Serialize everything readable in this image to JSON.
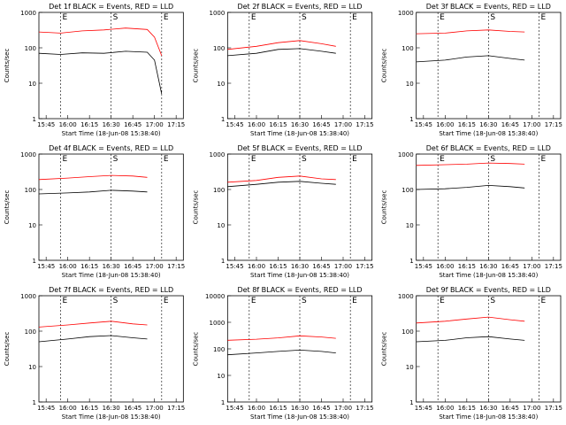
{
  "chart_data": {
    "type": "line",
    "layout": "3x3 grid",
    "yscale": "log",
    "x_ticks": [
      "15:45",
      "16:00",
      "16:15",
      "16:30",
      "16:45",
      "17:00",
      "17:15"
    ],
    "xlabel": "Start Time (18-Jun-08 15:38:40)",
    "ylabel": "Counts/sec",
    "markers": [
      "E",
      "S",
      "E"
    ],
    "colors": {
      "events": "#000000",
      "lld": "#ff0000",
      "axes": "#000000"
    },
    "panels": [
      {
        "title": "Det 1f BLACK = Events, RED = LLD",
        "ylim": [
          1,
          1000
        ],
        "y_ticks": [
          "1",
          "10",
          "100",
          "1000"
        ],
        "series": [
          {
            "key": "events",
            "values": [
              [
                0,
                70
              ],
              [
                6,
                65
              ],
              [
                12,
                72
              ],
              [
                18,
                70
              ],
              [
                24,
                80
              ],
              [
                30,
                75
              ],
              [
                32,
                45
              ],
              [
                34,
                5
              ]
            ]
          },
          {
            "key": "lld",
            "values": [
              [
                0,
                280
              ],
              [
                6,
                260
              ],
              [
                12,
                300
              ],
              [
                18,
                320
              ],
              [
                24,
                360
              ],
              [
                30,
                330
              ],
              [
                32,
                200
              ],
              [
                34,
                60
              ]
            ]
          }
        ]
      },
      {
        "title": "Det 2f BLACK = Events, RED = LLD",
        "ylim": [
          1,
          1000
        ],
        "y_ticks": [
          "1",
          "10",
          "100",
          "1000"
        ],
        "series": [
          {
            "key": "events",
            "values": [
              [
                0,
                60
              ],
              [
                8,
                70
              ],
              [
                14,
                90
              ],
              [
                20,
                95
              ],
              [
                26,
                80
              ],
              [
                30,
                70
              ]
            ]
          },
          {
            "key": "lld",
            "values": [
              [
                0,
                90
              ],
              [
                8,
                110
              ],
              [
                14,
                140
              ],
              [
                20,
                160
              ],
              [
                26,
                130
              ],
              [
                30,
                110
              ]
            ]
          }
        ]
      },
      {
        "title": "Det 3f BLACK = Events, RED = LLD",
        "ylim": [
          1,
          1000
        ],
        "y_ticks": [
          "1",
          "10",
          "100",
          "1000"
        ],
        "series": [
          {
            "key": "events",
            "values": [
              [
                0,
                40
              ],
              [
                8,
                45
              ],
              [
                14,
                55
              ],
              [
                20,
                60
              ],
              [
                26,
                50
              ],
              [
                30,
                45
              ]
            ]
          },
          {
            "key": "lld",
            "values": [
              [
                0,
                250
              ],
              [
                8,
                260
              ],
              [
                14,
                300
              ],
              [
                20,
                320
              ],
              [
                26,
                290
              ],
              [
                30,
                280
              ]
            ]
          }
        ]
      },
      {
        "title": "Det 4f BLACK = Events, RED = LLD",
        "ylim": [
          1,
          1000
        ],
        "y_ticks": [
          "1",
          "10",
          "100",
          "1000"
        ],
        "series": [
          {
            "key": "events",
            "values": [
              [
                0,
                75
              ],
              [
                8,
                80
              ],
              [
                14,
                85
              ],
              [
                20,
                95
              ],
              [
                26,
                90
              ],
              [
                30,
                85
              ]
            ]
          },
          {
            "key": "lld",
            "values": [
              [
                0,
                190
              ],
              [
                8,
                210
              ],
              [
                14,
                230
              ],
              [
                20,
                250
              ],
              [
                26,
                240
              ],
              [
                30,
                220
              ]
            ]
          }
        ]
      },
      {
        "title": "Det 5f BLACK = Events, RED = LLD",
        "ylim": [
          1,
          1000
        ],
        "y_ticks": [
          "1",
          "10",
          "100",
          "1000"
        ],
        "series": [
          {
            "key": "events",
            "values": [
              [
                0,
                120
              ],
              [
                8,
                140
              ],
              [
                14,
                160
              ],
              [
                20,
                170
              ],
              [
                26,
                150
              ],
              [
                30,
                140
              ]
            ]
          },
          {
            "key": "lld",
            "values": [
              [
                0,
                160
              ],
              [
                8,
                180
              ],
              [
                14,
                220
              ],
              [
                20,
                240
              ],
              [
                26,
                200
              ],
              [
                30,
                190
              ]
            ]
          }
        ]
      },
      {
        "title": "Det 6f BLACK = Events, RED = LLD",
        "ylim": [
          1,
          1000
        ],
        "y_ticks": [
          "1",
          "10",
          "100",
          "1000"
        ],
        "series": [
          {
            "key": "events",
            "values": [
              [
                0,
                100
              ],
              [
                8,
                105
              ],
              [
                14,
                115
              ],
              [
                20,
                130
              ],
              [
                26,
                120
              ],
              [
                30,
                110
              ]
            ]
          },
          {
            "key": "lld",
            "values": [
              [
                0,
                480
              ],
              [
                8,
                500
              ],
              [
                14,
                520
              ],
              [
                20,
                560
              ],
              [
                26,
                540
              ],
              [
                30,
                520
              ]
            ]
          }
        ]
      },
      {
        "title": "Det 7f BLACK = Events, RED = LLD",
        "ylim": [
          1,
          1000
        ],
        "y_ticks": [
          "1",
          "10",
          "100",
          "1000"
        ],
        "series": [
          {
            "key": "events",
            "values": [
              [
                0,
                50
              ],
              [
                8,
                60
              ],
              [
                14,
                70
              ],
              [
                20,
                75
              ],
              [
                26,
                65
              ],
              [
                30,
                60
              ]
            ]
          },
          {
            "key": "lld",
            "values": [
              [
                0,
                130
              ],
              [
                8,
                150
              ],
              [
                14,
                170
              ],
              [
                20,
                190
              ],
              [
                26,
                160
              ],
              [
                30,
                150
              ]
            ]
          }
        ]
      },
      {
        "title": "Det 8f BLACK = Events, RED = LLD",
        "ylim": [
          1,
          10000
        ],
        "y_ticks": [
          "1",
          "10",
          "100",
          "1000",
          "10000"
        ],
        "series": [
          {
            "key": "events",
            "values": [
              [
                0,
                60
              ],
              [
                8,
                70
              ],
              [
                14,
                80
              ],
              [
                20,
                90
              ],
              [
                26,
                80
              ],
              [
                30,
                70
              ]
            ]
          },
          {
            "key": "lld",
            "values": [
              [
                0,
                210
              ],
              [
                8,
                230
              ],
              [
                14,
                260
              ],
              [
                20,
                310
              ],
              [
                26,
                280
              ],
              [
                30,
                250
              ]
            ]
          }
        ]
      },
      {
        "title": "Det 9f BLACK = Events, RED = LLD",
        "ylim": [
          1,
          1000
        ],
        "y_ticks": [
          "1",
          "10",
          "100",
          "1000"
        ],
        "series": [
          {
            "key": "events",
            "values": [
              [
                0,
                50
              ],
              [
                8,
                55
              ],
              [
                14,
                65
              ],
              [
                20,
                70
              ],
              [
                26,
                60
              ],
              [
                30,
                55
              ]
            ]
          },
          {
            "key": "lld",
            "values": [
              [
                0,
                170
              ],
              [
                8,
                190
              ],
              [
                14,
                220
              ],
              [
                20,
                250
              ],
              [
                26,
                210
              ],
              [
                30,
                190
              ]
            ]
          }
        ]
      }
    ]
  }
}
